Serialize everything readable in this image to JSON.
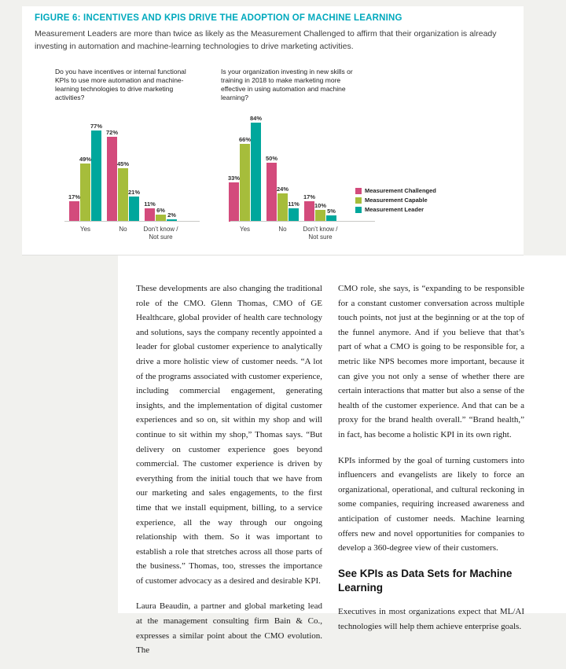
{
  "figure": {
    "title": "FIGURE 6: INCENTIVES AND KPIS DRIVE THE ADOPTION OF MACHINE LEARNING",
    "subtitle": "Measurement Leaders are more than twice as likely as the Measurement Challenged to affirm that their organization is already investing in automation and machine-learning technologies to drive marketing activities.",
    "accent_color": "#00a9bd",
    "legend": [
      {
        "label": "Measurement Challenged",
        "color": "#d34b7c"
      },
      {
        "label": "Measurement Capable",
        "color": "#a6bd3b"
      },
      {
        "label": "Measurement Leader",
        "color": "#00a79c"
      }
    ]
  },
  "chart_data": [
    {
      "type": "bar",
      "title": "Do you have incentives or internal functional KPIs to use more automation and machine-learning technologies to drive marketing activities?",
      "categories": [
        "Yes",
        "No",
        "Don’t know /\nNot sure"
      ],
      "series": [
        {
          "name": "Measurement Challenged",
          "color": "#d34b7c",
          "values": [
            17,
            72,
            11
          ]
        },
        {
          "name": "Measurement Capable",
          "color": "#a6bd3b",
          "values": [
            49,
            45,
            6
          ]
        },
        {
          "name": "Measurement Leader",
          "color": "#00a79c",
          "values": [
            77,
            21,
            2
          ]
        }
      ],
      "value_suffix": "%",
      "ylim": [
        0,
        100
      ],
      "grid": false,
      "legend_position": "right"
    },
    {
      "type": "bar",
      "title": "Is your organization investing in new skills or training in 2018 to make marketing more effective in using automation and machine learning?",
      "categories": [
        "Yes",
        "No",
        "Don’t know /\nNot sure"
      ],
      "series": [
        {
          "name": "Measurement Challenged",
          "color": "#d34b7c",
          "values": [
            33,
            50,
            17
          ]
        },
        {
          "name": "Measurement Capable",
          "color": "#a6bd3b",
          "values": [
            66,
            24,
            10
          ]
        },
        {
          "name": "Measurement Leader",
          "color": "#00a79c",
          "values": [
            84,
            11,
            5
          ]
        }
      ],
      "value_suffix": "%",
      "ylim": [
        0,
        100
      ],
      "grid": false,
      "legend_position": "right"
    }
  ],
  "article": {
    "left_column": {
      "paragraphs": [
        "These developments are also changing the traditional role of the CMO. Glenn Thomas, CMO of GE Healthcare, global provider of health care technology and solutions, says the company recently appointed a leader for global customer experience to analytically drive a more holistic view of customer needs. “A lot of the programs associated with customer experience, including commercial engagement, generating insights, and the implementation of digital customer experiences and so on, sit within my shop and will continue to sit within my shop,” Thomas says. “But delivery on customer experience goes beyond commercial. The customer experience is driven by everything from the initial touch that we have from our marketing and sales engagements, to the first time that we install equipment, billing, to a service experience, all the way through our ongoing relationship with them. So it was important to establish a role that stretches across all those parts of the business.” Thomas, too, stresses the importance of customer advocacy as a desired and desirable KPI.",
        "Laura Beaudin, a partner and global marketing lead at the management consulting firm Bain & Co., expresses a similar point about the CMO evolution. The"
      ]
    },
    "right_column": {
      "paragraphs": [
        "CMO role, she says, is “expanding to be responsible for a constant customer conversation across multiple touch points, not just at the beginning or at the top of the funnel anymore. And if you believe that that’s part of what a CMO is going to be responsible for, a metric like NPS becomes more important, because it can give you not only a sense of whether there are certain interactions that matter but also a sense of the health of the customer experience. And that can be a proxy for the brand health overall.” “Brand health,” in fact, has become a holistic KPI in its own right.",
        "KPIs informed by the goal of turning customers into influencers and evangelists are likely to force an organizational, operational, and cultural reckoning in some companies, requiring increased awareness and anticipation of customer needs. Machine learning offers new and novel opportunities for companies to develop a 360-degree view of their customers."
      ],
      "heading": "See KPIs as Data Sets for Machine Learning",
      "paragraphs_after": [
        "Executives in most organizations expect that ML/AI technologies will help them achieve enterprise goals."
      ]
    }
  }
}
